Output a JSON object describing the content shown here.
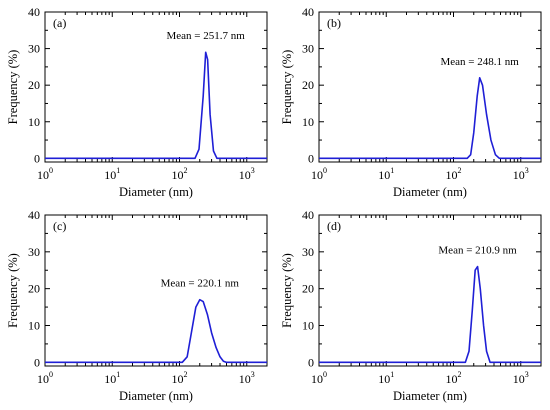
{
  "figure": {
    "curve_color": "#1f1fd6",
    "frame_color": "#000000"
  },
  "chart_data": [
    {
      "type": "line",
      "panel_label": "(a)",
      "annotation": "Mean = 251.7 nm",
      "xlabel": "Diameter (nm)",
      "ylabel": "Frequency (%)",
      "xscale": "log",
      "xlim": [
        1,
        2000
      ],
      "ylim": [
        -1,
        40
      ],
      "xticks": [
        {
          "base": "10",
          "exp": "0"
        },
        {
          "base": "10",
          "exp": "1"
        },
        {
          "base": "10",
          "exp": "2"
        },
        {
          "base": "10",
          "exp": "3"
        }
      ],
      "yticks": [
        "0",
        "10",
        "20",
        "30",
        "40"
      ],
      "grid": false,
      "series": [
        {
          "x": [
            1,
            170,
            195,
            225,
            245,
            262,
            285,
            320,
            360,
            2000
          ],
          "y": [
            0,
            0,
            2.5,
            17,
            29,
            27,
            12,
            2,
            0,
            0
          ]
        }
      ]
    },
    {
      "type": "line",
      "panel_label": "(b)",
      "annotation": "Mean = 248.1 nm",
      "xlabel": "Diameter (nm)",
      "ylabel": "Frequency (%)",
      "xscale": "log",
      "xlim": [
        1,
        2000
      ],
      "ylim": [
        -1,
        40
      ],
      "xticks": [
        {
          "base": "10",
          "exp": "0"
        },
        {
          "base": "10",
          "exp": "1"
        },
        {
          "base": "10",
          "exp": "2"
        },
        {
          "base": "10",
          "exp": "3"
        }
      ],
      "yticks": [
        "0",
        "10",
        "20",
        "30",
        "40"
      ],
      "grid": false,
      "series": [
        {
          "x": [
            1,
            160,
            180,
            200,
            225,
            245,
            270,
            310,
            360,
            420,
            480,
            2000
          ],
          "y": [
            0,
            0,
            1,
            7,
            17,
            22,
            20,
            12,
            5,
            1,
            0,
            0
          ]
        }
      ]
    },
    {
      "type": "line",
      "panel_label": "(c)",
      "annotation": "Mean = 220.1 nm",
      "xlabel": "Diameter (nm)",
      "ylabel": "Frequency (%)",
      "xscale": "log",
      "xlim": [
        1,
        2000
      ],
      "ylim": [
        -1,
        40
      ],
      "xticks": [
        {
          "base": "10",
          "exp": "0"
        },
        {
          "base": "10",
          "exp": "1"
        },
        {
          "base": "10",
          "exp": "2"
        },
        {
          "base": "10",
          "exp": "3"
        }
      ],
      "yticks": [
        "0",
        "10",
        "20",
        "30",
        "40"
      ],
      "grid": false,
      "series": [
        {
          "x": [
            1,
            110,
            130,
            150,
            175,
            200,
            225,
            260,
            300,
            350,
            400,
            450,
            500,
            2000
          ],
          "y": [
            0,
            0,
            1.5,
            8,
            15,
            17,
            16.5,
            13,
            8,
            4,
            1.5,
            0.3,
            0,
            0
          ]
        }
      ]
    },
    {
      "type": "line",
      "panel_label": "(d)",
      "annotation": "Mean = 210.9 nm",
      "xlabel": "Diameter (nm)",
      "ylabel": "Frequency (%)",
      "xscale": "log",
      "xlim": [
        1,
        2000
      ],
      "ylim": [
        -1,
        40
      ],
      "xticks": [
        {
          "base": "10",
          "exp": "0"
        },
        {
          "base": "10",
          "exp": "1"
        },
        {
          "base": "10",
          "exp": "2"
        },
        {
          "base": "10",
          "exp": "3"
        }
      ],
      "yticks": [
        "0",
        "10",
        "20",
        "30",
        "40"
      ],
      "grid": false,
      "series": [
        {
          "x": [
            1,
            150,
            170,
            190,
            210,
            228,
            250,
            280,
            310,
            350,
            2000
          ],
          "y": [
            0,
            0,
            3,
            14,
            25,
            26,
            20,
            10,
            3,
            0,
            0
          ]
        }
      ]
    }
  ]
}
